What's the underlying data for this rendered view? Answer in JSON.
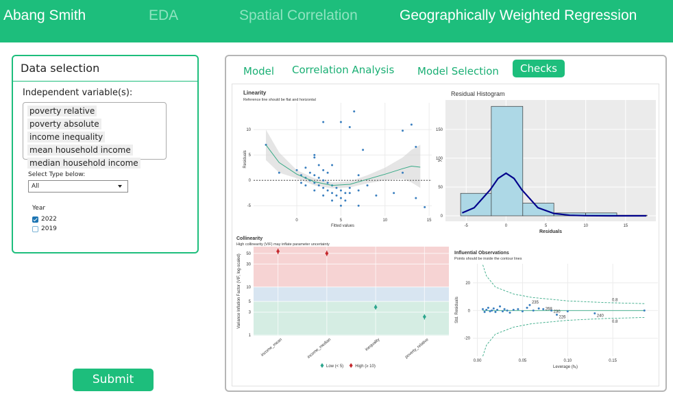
{
  "nav": {
    "brand": "Abang Smith",
    "tabs": [
      "EDA",
      "Spatial Correlation",
      "Geographically Weighted Regression"
    ],
    "active_tab": 2
  },
  "sidebar": {
    "title": "Data selection",
    "independent_label": "Independent variable(s):",
    "chips": [
      "poverty relative",
      "poverty absolute",
      "income inequality",
      "mean household income",
      "median household income"
    ],
    "type_label": "Select Type below:",
    "type_value": "All",
    "year_label": "Year",
    "years": [
      {
        "label": "2022",
        "checked": true
      },
      {
        "label": "2019",
        "checked": false
      }
    ],
    "submit": "Submit"
  },
  "main": {
    "tabs": [
      "Model",
      "Correlation Analysis",
      "Model Selection",
      "Checks"
    ],
    "active_tab": 3
  },
  "checks": {
    "linearity": {
      "title": "Linearity",
      "subtitle": "Reference line should be flat and horizontal",
      "xlabel": "Fitted values",
      "ylabel": "Residuals",
      "xlim": [
        -4.9,
        15.3
      ],
      "ylim": [
        -7,
        15.3
      ],
      "xticks": [
        0,
        5,
        10,
        15
      ],
      "yticks": [
        -5,
        0,
        5,
        10
      ],
      "reference": 0,
      "color": "#3a7fbf",
      "x": [
        -3.5,
        -2,
        0,
        0.5,
        1,
        1.5,
        2,
        2.5,
        3,
        3.5,
        4,
        4.5,
        5,
        5.5,
        1,
        1.5,
        2,
        2.5,
        3,
        3.5,
        4,
        4.5,
        5,
        6,
        0.5,
        1,
        2,
        3,
        4,
        5,
        2,
        2,
        2.5,
        3,
        3,
        3.5,
        4,
        5,
        6,
        6.5,
        7,
        7.5,
        8,
        9,
        6,
        7,
        11,
        12,
        12,
        13,
        13.5,
        13.5,
        14.5,
        7,
        5.5
      ],
      "y": [
        7,
        1.5,
        2,
        1,
        0.5,
        0,
        -0.5,
        -1,
        -1.5,
        -2,
        -2.5,
        -3,
        -3.5,
        -4,
        2.5,
        1.5,
        1,
        0.5,
        0,
        -0.5,
        -1,
        -1.5,
        -2,
        -2.5,
        -0.5,
        -1,
        -2,
        -3,
        -4,
        -5,
        4.5,
        5,
        3,
        11.5,
        2,
        1.5,
        3,
        11.5,
        10.5,
        13.6,
        1,
        6,
        -1,
        -3,
        -1.5,
        -2,
        -2.5,
        1.5,
        9.8,
        11,
        6.6,
        -3.5,
        -5.3,
        -5,
        -2.5
      ],
      "smooth": {
        "color": "#35a985",
        "x": [
          -3.5,
          -2,
          0,
          2,
          4,
          6,
          8,
          10,
          12,
          13,
          14
        ],
        "y": [
          7,
          3.5,
          1.2,
          -0.3,
          -1,
          -0.8,
          0.2,
          1.2,
          2.3,
          2.8,
          2.6
        ],
        "upper": [
          10,
          5.5,
          2,
          0.4,
          -0.4,
          -0.2,
          1,
          2.5,
          4.5,
          6,
          7
        ],
        "lower": [
          4,
          1.5,
          0.4,
          -1,
          -1.6,
          -1.4,
          -0.6,
          0,
          0.3,
          -0.4,
          -1.5
        ]
      }
    },
    "histogram": {
      "title": "Residual Histogram",
      "xlabel": "Residuals",
      "ylabel": "y",
      "xlim": [
        -7.6,
        18.8
      ],
      "ylim": [
        -9.5,
        201
      ],
      "xticks": [
        -5,
        0,
        5,
        10,
        15
      ],
      "yticks": [
        0,
        50,
        100,
        150
      ],
      "bins": [
        -5.7,
        -1.85,
        2.1,
        6,
        10,
        13.9,
        17.7
      ],
      "counts": [
        39,
        190,
        22,
        5,
        5,
        1
      ],
      "color": "#add8e6",
      "density": {
        "color": "#00008b",
        "x": [
          -5.5,
          -4,
          -2,
          -1,
          0,
          1,
          2,
          4,
          6,
          8,
          10,
          13.5,
          17.6
        ],
        "y": [
          5,
          14,
          45,
          65,
          74,
          65,
          45,
          14,
          4,
          1,
          0.3,
          0,
          0
        ]
      }
    },
    "collinearity": {
      "title": "Collinearity",
      "subtitle": "High collinearity (VIF) may inflate parameter uncertainty",
      "ylabel": "Variance Inflation Factor (VIF, log-scaled)",
      "log": true,
      "ylim": [
        0.97,
        69
      ],
      "yticks": [
        1,
        3,
        5,
        10,
        30,
        50
      ],
      "categories": [
        "income_mean",
        "income_median",
        "inequality",
        "poverty_relative"
      ],
      "values": [
        55,
        50,
        3.8,
        2.4
      ],
      "ci_low": [
        48,
        44,
        3.4,
        2.1
      ],
      "ci_high": [
        63,
        57,
        4.3,
        2.7
      ],
      "thresholds": [
        5,
        10
      ],
      "band_colors": [
        "#d5ede3",
        "#d8e5f1",
        "#f6d3d3"
      ],
      "legend": [
        {
          "name": "Low (< 5)",
          "color": "#2ca58d"
        },
        {
          "name": "High (≥ 10)",
          "color": "#c4282d"
        }
      ]
    },
    "influential": {
      "title": "Influential Observations",
      "subtitle": "Points should be inside the contour lines",
      "xlabel": "Leverage (hᵢᵢ)",
      "ylabel": "Std. Residuals",
      "xlim": [
        -0.005,
        0.2
      ],
      "ylim": [
        -33,
        33.8
      ],
      "xticks": [
        {
          "value": 0,
          "label": "0.00"
        },
        0.05,
        {
          "value": 0.1,
          "label": "0.10"
        },
        0.15
      ],
      "yticks": [
        -20,
        0,
        20
      ],
      "color": "#3a7fbf",
      "contour_color": "#35a985",
      "contour_label": "0.8",
      "x": [
        0.006,
        0.008,
        0.01,
        0.012,
        0.014,
        0.016,
        0.018,
        0.02,
        0.022,
        0.025,
        0.028,
        0.03,
        0.033,
        0.036,
        0.04,
        0.045,
        0.05,
        0.055,
        0.058,
        0.062,
        0.068,
        0.073,
        0.082,
        0.088,
        0.1,
        0.13,
        0.185
      ],
      "y": [
        1,
        -1,
        0.5,
        2,
        -0.5,
        0,
        1.5,
        -1,
        0.5,
        3,
        -0.5,
        1,
        0,
        -1.5,
        0.5,
        1,
        -0.5,
        2,
        4,
        0,
        1.5,
        1,
        0,
        -3,
        -0.5,
        -2,
        0
      ],
      "labels": [
        {
          "text": "235",
          "x": 0.058,
          "y": 6
        },
        {
          "text": "268",
          "x": 0.073,
          "y": 1.5
        },
        {
          "text": "230",
          "x": 0.082,
          "y": -0.5
        },
        {
          "text": "226",
          "x": 0.088,
          "y": -4.5
        },
        {
          "text": "240",
          "x": 0.13,
          "y": -3.5
        }
      ],
      "contour": {
        "x": [
          0.006,
          0.01,
          0.02,
          0.04,
          0.06,
          0.1,
          0.14,
          0.185
        ],
        "upper": [
          33,
          25,
          17,
          12,
          9.5,
          7,
          5.8,
          5
        ],
        "lower": [
          -33,
          -25,
          -17,
          -12,
          -9.5,
          -7,
          -5.8,
          -5
        ]
      },
      "contour_label_at": 6
    }
  }
}
